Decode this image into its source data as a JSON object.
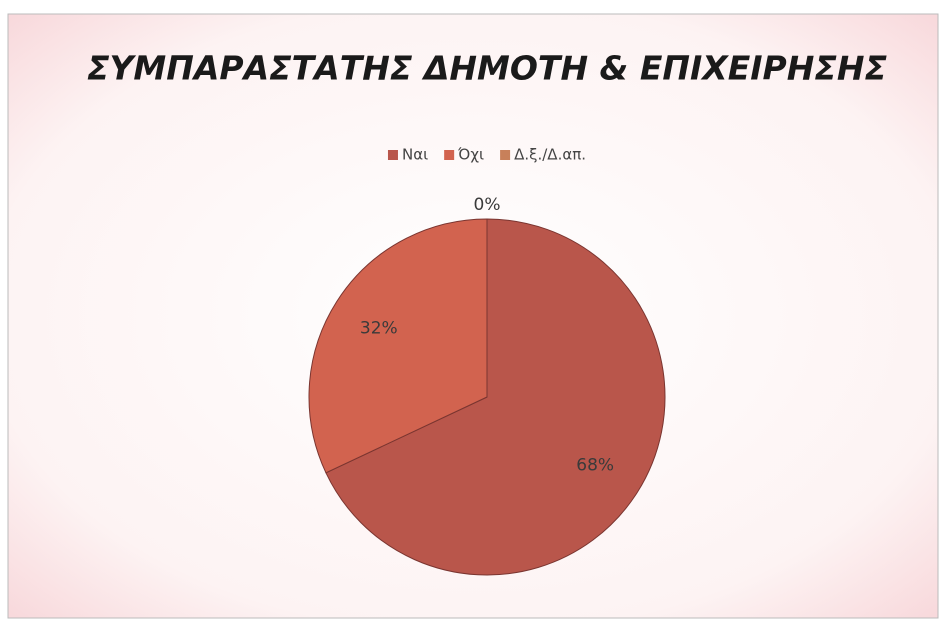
{
  "chart_data": {
    "type": "pie",
    "title": "ΣΥΜΠΑΡΑΣΤΑΤΗΣ ΔΗΜΟΤΗ & ΕΠΙΧΕΙΡΗΣΗΣ",
    "categories": [
      "Ναι",
      "Όχι",
      "Δ.ξ./Δ.απ."
    ],
    "values": [
      68,
      32,
      0
    ],
    "value_labels": [
      "68%",
      "32%",
      "0%"
    ],
    "colors": [
      "#b9564b",
      "#d2634f",
      "#c8805a"
    ],
    "legend": "top"
  }
}
